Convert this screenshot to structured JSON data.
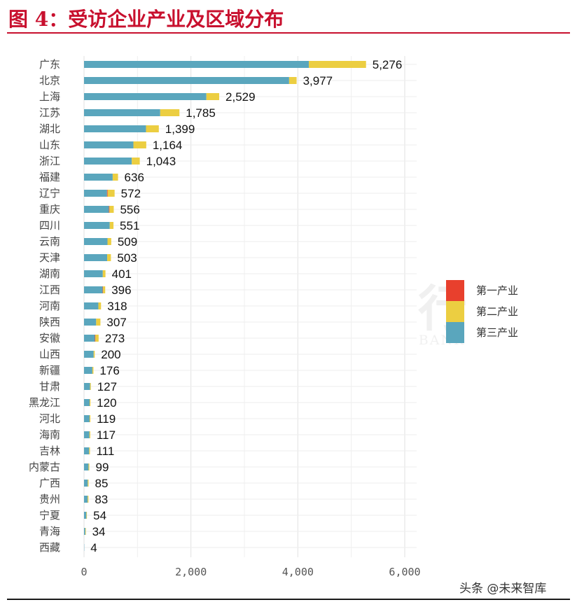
{
  "figure": {
    "title": "图 4：受访企业产业及区域分布",
    "source": "头条 @未来智库"
  },
  "watermark": {
    "text": "招商银行",
    "subtext": "CHINA MERCHANTS BANK"
  },
  "colors": {
    "primary": "#e8402d",
    "secondary": "#ecce41",
    "tertiary": "#5aa6bd",
    "title": "#c8102e"
  },
  "chart_data": {
    "type": "bar",
    "orientation": "horizontal",
    "stacked": true,
    "categories": [
      "广东",
      "北京",
      "上海",
      "江苏",
      "湖北",
      "山东",
      "浙江",
      "福建",
      "辽宁",
      "重庆",
      "四川",
      "云南",
      "天津",
      "湖南",
      "江西",
      "河南",
      "陕西",
      "安徽",
      "山西",
      "新疆",
      "甘肃",
      "黑龙江",
      "河北",
      "海南",
      "吉林",
      "内蒙古",
      "广西",
      "贵州",
      "宁夏",
      "青海",
      "西藏"
    ],
    "series": [
      {
        "name": "第一产业",
        "color": "#e8402d",
        "values": [
          0,
          0,
          0,
          0,
          0,
          0,
          0,
          0,
          12,
          10,
          0,
          0,
          0,
          0,
          8,
          0,
          0,
          10,
          0,
          0,
          0,
          0,
          0,
          0,
          0,
          0,
          0,
          0,
          0,
          0,
          0
        ]
      },
      {
        "name": "第二产业",
        "color": "#ecce41",
        "values": [
          1070,
          140,
          240,
          360,
          240,
          240,
          150,
          100,
          130,
          80,
          70,
          70,
          70,
          50,
          40,
          50,
          80,
          60,
          20,
          20,
          15,
          15,
          15,
          15,
          15,
          15,
          15,
          15,
          10,
          10,
          0
        ]
      },
      {
        "name": "第三产业",
        "color": "#5aa6bd",
        "values": [
          4206,
          3837,
          2289,
          1425,
          1159,
          924,
          893,
          536,
          430,
          466,
          481,
          439,
          433,
          351,
          348,
          268,
          227,
          203,
          180,
          156,
          112,
          105,
          104,
          102,
          96,
          84,
          70,
          68,
          44,
          24,
          4
        ]
      }
    ],
    "totals": [
      5276,
      3977,
      2529,
      1785,
      1399,
      1164,
      1043,
      636,
      572,
      556,
      551,
      509,
      503,
      401,
      396,
      318,
      307,
      273,
      200,
      176,
      127,
      120,
      119,
      117,
      111,
      99,
      85,
      83,
      54,
      34,
      4
    ],
    "total_labels": [
      "5,276",
      "3,977",
      "2,529",
      "1,785",
      "1,399",
      "1,164",
      "1,043",
      "636",
      "572",
      "556",
      "551",
      "509",
      "503",
      "401",
      "396",
      "318",
      "307",
      "273",
      "200",
      "176",
      "127",
      "120",
      "119",
      "117",
      "111",
      "99",
      "85",
      "83",
      "54",
      "34",
      "4"
    ],
    "xlim": [
      0,
      6300
    ],
    "xticks": [
      0,
      2000,
      4000,
      6000
    ],
    "xtick_labels": [
      "0",
      "2,000",
      "4,000",
      "6,000"
    ],
    "grid": true,
    "legend": "right"
  }
}
